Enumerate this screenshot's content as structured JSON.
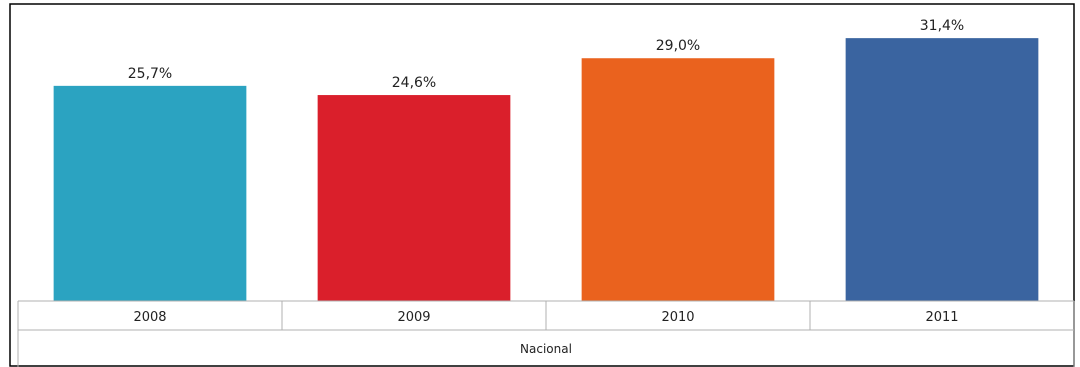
{
  "chart_data": {
    "type": "bar",
    "categories": [
      "2008",
      "2009",
      "2010",
      "2011"
    ],
    "values": [
      25.7,
      24.6,
      29.0,
      31.4
    ],
    "value_labels": [
      "25,7%",
      "24,6%",
      "29,0%",
      "31,4%"
    ],
    "group_label": "Nacional",
    "colors": [
      "#2ba3c1",
      "#da1f2b",
      "#ea621e",
      "#3a64a0"
    ],
    "ylim": [
      0,
      35
    ],
    "grid": false,
    "legend": "none",
    "title": "",
    "xlabel": "",
    "ylabel": ""
  }
}
